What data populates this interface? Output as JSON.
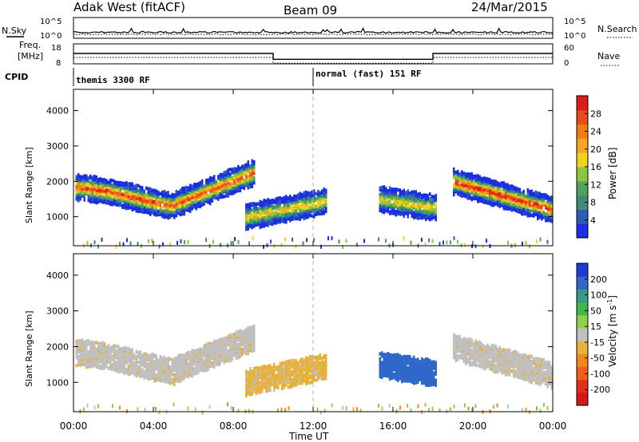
{
  "header": {
    "station": "Adak West (fitACF)",
    "beam": "Beam 09",
    "date": "24/Mar/2015"
  },
  "top_panels": {
    "nsky_label": "N.Sky",
    "nsearch_label": "N.Search",
    "noise_ticks": [
      "10^5",
      "10^0"
    ],
    "freq_label_lines": [
      "Freq.",
      "[MHz]"
    ],
    "freq_ticks": [
      "18",
      "8"
    ],
    "nave_label": "Nave",
    "nave_ticks": [
      "60",
      "0"
    ],
    "cpid_label": "CPID",
    "cpid_segments": [
      {
        "label": "themis 3300 RF",
        "start_hour": 0,
        "end_hour": 12
      },
      {
        "label": "normal (fast) 151 RF",
        "start_hour": 12,
        "end_hour": 24
      }
    ],
    "freq_steps": [
      {
        "start_hour": 0,
        "end_hour": 10,
        "freq_mhz": 13.2
      },
      {
        "start_hour": 10,
        "end_hour": 18,
        "freq_mhz": 10.3
      },
      {
        "start_hour": 18,
        "end_hour": 24,
        "freq_mhz": 13.2
      }
    ]
  },
  "axis": {
    "ylabel": "Slant Range [km]",
    "y_ticks": [
      "1000",
      "2000",
      "3000",
      "4000"
    ],
    "x_ticks": [
      "00:00",
      "04:00",
      "08:00",
      "12:00",
      "16:00",
      "20:00",
      "00:00"
    ],
    "xlabel": "Time UT"
  },
  "colorbars": {
    "power": {
      "title": "Power [dB]",
      "ticks": [
        "4",
        "8",
        "12",
        "16",
        "20",
        "24",
        "28"
      ],
      "colors": [
        "#1a2ee6",
        "#2f5bb8",
        "#3f8a7a",
        "#4fa35a",
        "#8cc63f",
        "#f2d21b",
        "#f5a623",
        "#f07d14",
        "#e84a1a",
        "#e01b1b"
      ]
    },
    "velocity": {
      "title_main": "Velocity [m s",
      "title_sup": "-1",
      "title_close": "]",
      "ticks": [
        "200",
        "100",
        "50",
        "15",
        "-15",
        "-50",
        "-100",
        "-200"
      ],
      "colors": [
        "#1a3bd6",
        "#2f68c8",
        "#3a9a8a",
        "#3fb84a",
        "#8fd04a",
        "#c0c0c0",
        "#e8b23a",
        "#f08a1e",
        "#f0601a",
        "#e0301a",
        "#d81818"
      ]
    }
  },
  "chart_data": [
    {
      "type": "heatmap",
      "title": "Power [dB]",
      "xlabel": "Time UT",
      "ylabel": "Slant Range [km]",
      "xlim_hours": [
        0,
        24
      ],
      "ylim_km": [
        180,
        4600
      ],
      "clim": [
        0,
        30
      ],
      "regions": [
        {
          "name": "morning arc",
          "start_hour": 0.1,
          "end_hour": 9.0,
          "range_km": [
            1300,
            2400
          ],
          "peak_db": 26
        },
        {
          "name": "midday patch",
          "start_hour": 8.6,
          "end_hour": 12.6,
          "range_km": [
            800,
            1700
          ],
          "peak_db": 18
        },
        {
          "name": "afternoon patch",
          "start_hour": 15.3,
          "end_hour": 18.2,
          "range_km": [
            1100,
            1800
          ],
          "peak_db": 18
        },
        {
          "name": "evening arc",
          "start_hour": 19.0,
          "end_hour": 24.0,
          "range_km": [
            1200,
            2300
          ],
          "peak_db": 28
        }
      ]
    },
    {
      "type": "heatmap",
      "title": "Velocity [m s-1]",
      "xlabel": "Time UT",
      "ylabel": "Slant Range [km]",
      "xlim_hours": [
        0,
        24
      ],
      "ylim_km": [
        180,
        4600
      ],
      "clim": [
        -250,
        250
      ],
      "regions": [
        {
          "name": "morning arc",
          "start_hour": 0.1,
          "end_hour": 9.0,
          "range_km": [
            1300,
            2400
          ],
          "velocity": 0
        },
        {
          "name": "midday patch",
          "start_hour": 8.6,
          "end_hour": 12.6,
          "range_km": [
            800,
            1700
          ],
          "velocity": -70
        },
        {
          "name": "afternoon patch",
          "start_hour": 15.3,
          "end_hour": 18.2,
          "range_km": [
            1100,
            1800
          ],
          "velocity": 150
        },
        {
          "name": "evening arc",
          "start_hour": 19.0,
          "end_hour": 24.0,
          "range_km": [
            1200,
            2300
          ],
          "velocity": 0
        }
      ]
    }
  ]
}
